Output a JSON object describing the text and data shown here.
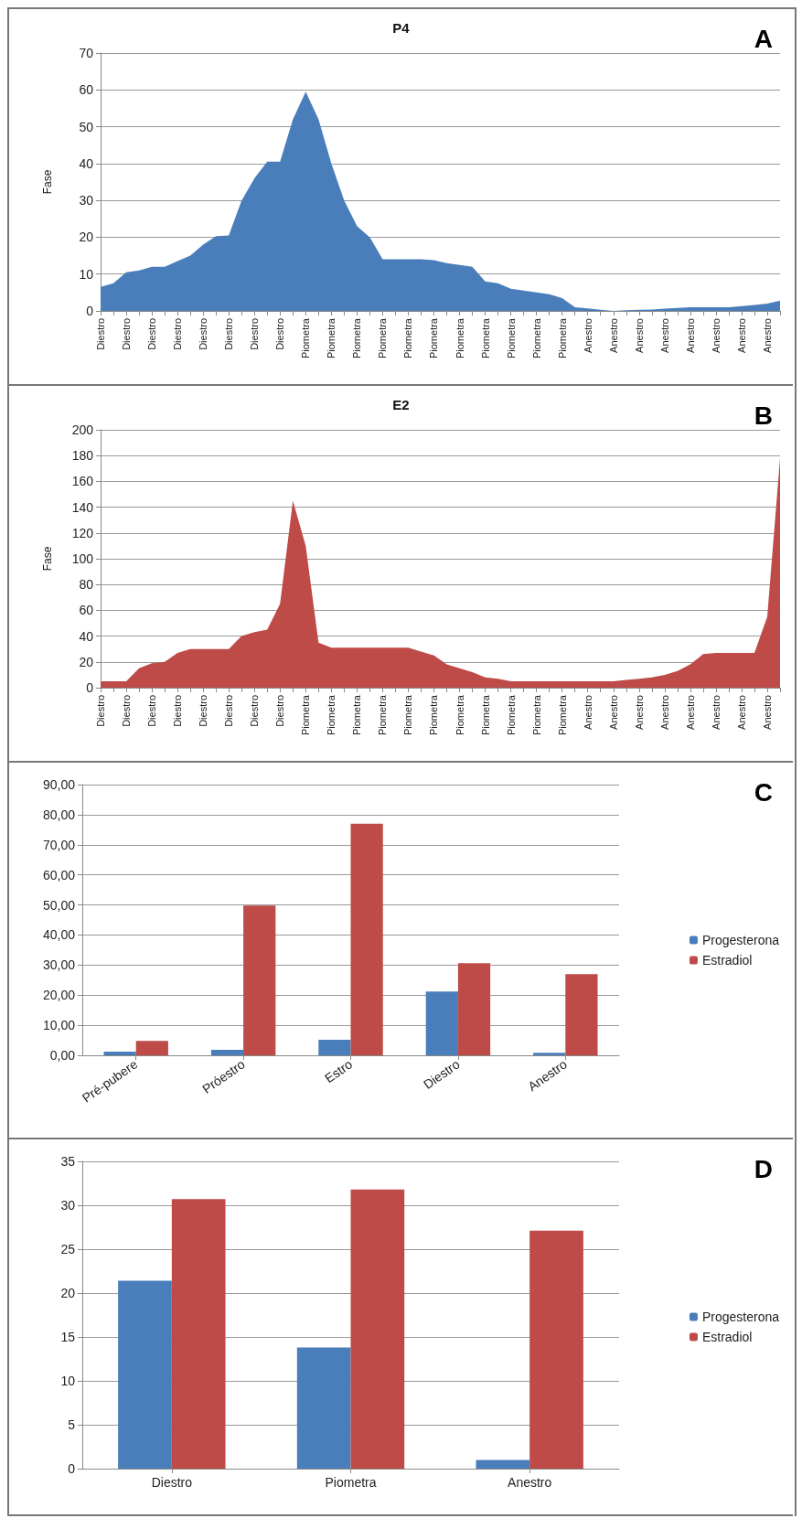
{
  "chart_data": [
    {
      "type": "area",
      "title": "P4",
      "ylabel": "Fase",
      "annotations": [
        "A"
      ],
      "grid": "y",
      "ylim": [
        0,
        70
      ],
      "yticks": [
        0,
        10,
        20,
        30,
        40,
        50,
        60,
        70
      ],
      "categories": [
        "Diestro",
        null,
        "Diestro",
        null,
        "Diestro",
        null,
        "Diestro",
        null,
        "Diestro",
        null,
        "Diestro",
        null,
        "Diestro",
        null,
        "Diestro",
        null,
        "Piometra",
        null,
        "Piometra",
        null,
        "Piometra",
        null,
        "Piometra",
        null,
        "Piometra",
        null,
        "Piometra",
        null,
        "Piometra",
        null,
        "Piometra",
        null,
        "Piometra",
        null,
        "Piometra",
        null,
        "Piometra",
        null,
        "Anestro",
        null,
        "Anestro",
        null,
        "Anestro",
        null,
        "Anestro",
        null,
        "Anestro",
        null,
        "Anestro",
        null,
        "Anestro",
        null,
        "Anestro",
        null
      ],
      "series": [
        {
          "color": "#4a7ebb",
          "values": [
            6.5,
            7.5,
            10.5,
            11,
            12,
            12,
            13.5,
            15,
            18,
            20.3,
            20.5,
            30,
            36,
            40.5,
            40.5,
            52,
            59.5,
            52,
            40,
            30,
            23,
            20,
            14,
            14,
            14,
            14,
            13.8,
            13,
            12.5,
            12,
            8,
            7.5,
            6,
            5.5,
            5,
            4.5,
            3.5,
            1,
            0.7,
            0.3,
            0,
            0.2,
            0.3,
            0.4,
            0.6,
            0.8,
            1,
            1,
            1,
            1,
            1.3,
            1.6,
            2,
            2.8
          ]
        }
      ]
    },
    {
      "type": "area",
      "title": "E2",
      "ylabel": "Fase",
      "annotations": [
        "B"
      ],
      "grid": "y",
      "ylim": [
        0,
        200
      ],
      "yticks": [
        0,
        20,
        40,
        60,
        80,
        100,
        120,
        140,
        160,
        180,
        200
      ],
      "categories": [
        "Diestro",
        null,
        "Diestro",
        null,
        "Diestro",
        null,
        "Diestro",
        null,
        "Diestro",
        null,
        "Diestro",
        null,
        "Diestro",
        null,
        "Diestro",
        null,
        "Piometra",
        null,
        "Piometra",
        null,
        "Piometra",
        null,
        "Piometra",
        null,
        "Piometra",
        null,
        "Piometra",
        null,
        "Piometra",
        null,
        "Piometra",
        null,
        "Piometra",
        null,
        "Piometra",
        null,
        "Piometra",
        null,
        "Anestro",
        null,
        "Anestro",
        null,
        "Anestro",
        null,
        "Anestro",
        null,
        "Anestro",
        null,
        "Anestro",
        null,
        "Anestro",
        null,
        "Anestro",
        null
      ],
      "series": [
        {
          "color": "#be4b48",
          "values": [
            5,
            5,
            5,
            15,
            19,
            20,
            27,
            30,
            30,
            30,
            30,
            40,
            43,
            45,
            65,
            145,
            110,
            35,
            31,
            31,
            31,
            31,
            31,
            31,
            31,
            28,
            25,
            18,
            15,
            12,
            8,
            7,
            5,
            5,
            5,
            5,
            5,
            5,
            5,
            5,
            5,
            6,
            7,
            8,
            10,
            13,
            18,
            26,
            27,
            27,
            27,
            27,
            55,
            178
          ]
        }
      ]
    },
    {
      "type": "bar",
      "annotations": [
        "C"
      ],
      "grid": "y",
      "legend": "right",
      "ylim": [
        0,
        90
      ],
      "yticks": [
        {
          "value": 0,
          "label": "0,00"
        },
        {
          "value": 10,
          "label": "10,00"
        },
        {
          "value": 20,
          "label": "20,00"
        },
        {
          "value": 30,
          "label": "30,00"
        },
        {
          "value": 40,
          "label": "40,00"
        },
        {
          "value": 50,
          "label": "50,00"
        },
        {
          "value": 60,
          "label": "60,00"
        },
        {
          "value": 70,
          "label": "70,00"
        },
        {
          "value": 80,
          "label": "80,00"
        },
        {
          "value": 90,
          "label": "90,00"
        }
      ],
      "categories": [
        "Pré-pubere",
        "Próestro",
        "Estro",
        "Diestro",
        "Anestro"
      ],
      "series": [
        {
          "name": "Progesterona",
          "color": "#4a7ebb",
          "values": [
            1.2,
            1.8,
            5.2,
            21.2,
            0.8
          ]
        },
        {
          "name": "Estradiol",
          "color": "#be4b48",
          "values": [
            4.8,
            49.8,
            77,
            30.6,
            27
          ]
        }
      ]
    },
    {
      "type": "bar",
      "annotations": [
        "D"
      ],
      "grid": "y",
      "legend": "right",
      "ylim": [
        0,
        35
      ],
      "yticks": [
        0,
        5,
        10,
        15,
        20,
        25,
        30,
        35
      ],
      "categories": [
        "Diestro",
        "Piometra",
        "Anestro"
      ],
      "series": [
        {
          "name": "Progesterona",
          "color": "#4a7ebb",
          "values": [
            21.4,
            13.8,
            1.0
          ]
        },
        {
          "name": "Estradiol",
          "color": "#be4b48",
          "values": [
            30.7,
            31.8,
            27.1
          ]
        }
      ]
    }
  ]
}
